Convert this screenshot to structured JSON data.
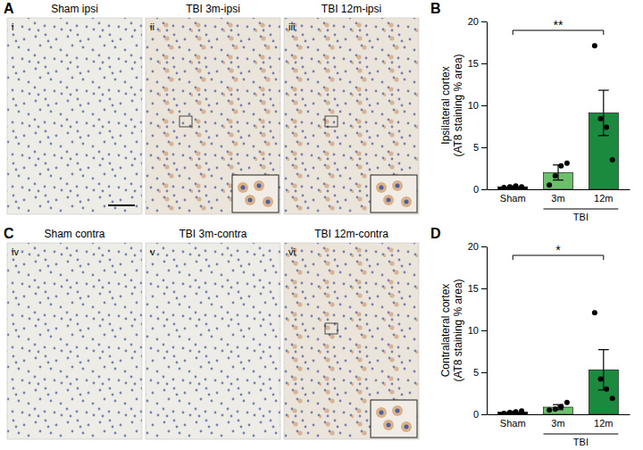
{
  "chart_data": [
    {
      "type": "bar",
      "panel": "B",
      "categories": [
        "Sham",
        "3m",
        "12m"
      ],
      "values": [
        0.3,
        2.0,
        9.1
      ],
      "errors": [
        0.1,
        0.9,
        2.7
      ],
      "points": [
        [
          0.2,
          0.3,
          0.4,
          0.3
        ],
        [
          0.5,
          1.6,
          2.8,
          3.1
        ],
        [
          17.1,
          8.4,
          7.4,
          3.5
        ]
      ],
      "colors": [
        "#000000",
        "#6cc06c",
        "#1b8a3f"
      ],
      "y_label": [
        "Ipsilateral cortex",
        "(AT8 staining % area)"
      ],
      "ylim": [
        0,
        20
      ],
      "yticks": [
        0,
        5,
        10,
        15,
        20
      ],
      "group_label": {
        "text": "TBI",
        "categories": [
          "3m",
          "12m"
        ]
      },
      "significance": {
        "text": "**",
        "categories": [
          "Sham",
          "12m"
        ]
      }
    },
    {
      "type": "bar",
      "panel": "D",
      "categories": [
        "Sham",
        "3m",
        "12m"
      ],
      "values": [
        0.25,
        0.85,
        5.3
      ],
      "errors": [
        0.1,
        0.3,
        2.4
      ],
      "points": [
        [
          0.1,
          0.2,
          0.3,
          0.4
        ],
        [
          0.5,
          0.6,
          0.9,
          1.4
        ],
        [
          12.1,
          4.2,
          3.0,
          1.9
        ]
      ],
      "colors": [
        "#000000",
        "#6cc06c",
        "#1b8a3f"
      ],
      "y_label": [
        "Contralateral cortex",
        "(AT8 staining % area)"
      ],
      "ylim": [
        0,
        20
      ],
      "yticks": [
        0,
        5,
        10,
        15,
        20
      ],
      "group_label": {
        "text": "TBI",
        "categories": [
          "3m",
          "12m"
        ]
      },
      "significance": {
        "text": "*",
        "categories": [
          "Sham",
          "12m"
        ]
      }
    }
  ],
  "image_panels": [
    {
      "panel": "A",
      "images": [
        {
          "numeral": "i",
          "caption": "Sham ipsi"
        },
        {
          "numeral": "ii",
          "caption": "TBI 3m-ipsi"
        },
        {
          "numeral": "iii",
          "caption": "TBI 12m-ipsi"
        }
      ]
    },
    {
      "panel": "C",
      "images": [
        {
          "numeral": "iv",
          "caption": "Sham contra"
        },
        {
          "numeral": "v",
          "caption": "TBI 3m-contra"
        },
        {
          "numeral": "vi",
          "caption": "TBI 12m-contra"
        }
      ]
    }
  ]
}
